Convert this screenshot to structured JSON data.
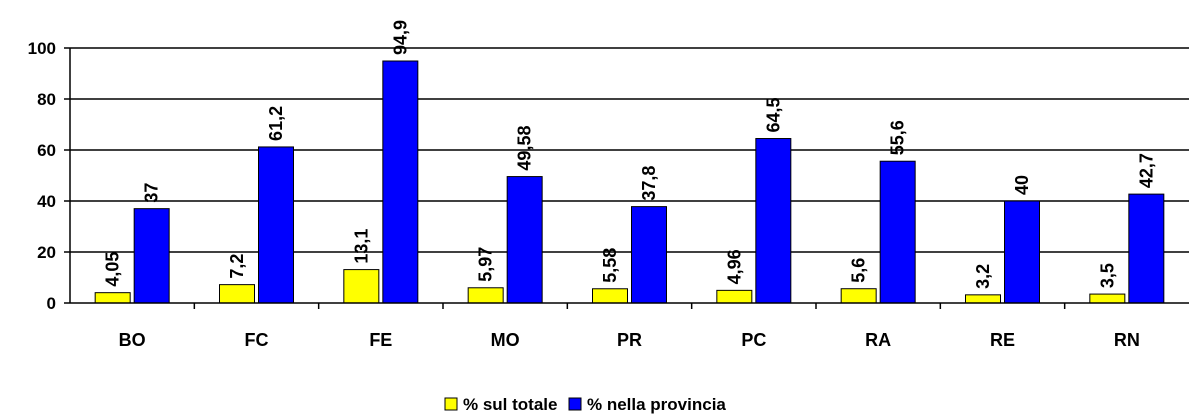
{
  "chart_data": {
    "type": "bar",
    "categories": [
      "BO",
      "FC",
      "FE",
      "MO",
      "PR",
      "PC",
      "RA",
      "RE",
      "RN"
    ],
    "series": [
      {
        "name": "% sul totale",
        "values": [
          4.05,
          7.2,
          13.1,
          5.97,
          5.58,
          4.96,
          5.6,
          3.2,
          3.5
        ],
        "labels": [
          "4,05",
          "7,2",
          "13,1",
          "5,97",
          "5,58",
          "4,96",
          "5,6",
          "3,2",
          "3,5"
        ],
        "color": "#FFFF00"
      },
      {
        "name": "% nella provincia",
        "values": [
          37,
          61.2,
          94.9,
          49.58,
          37.8,
          64.5,
          55.6,
          40,
          42.7
        ],
        "labels": [
          "37",
          "61,2",
          "94,9",
          "49,58",
          "37,8",
          "64,5",
          "55,6",
          "40",
          "42,7"
        ],
        "color": "#0000FF"
      }
    ],
    "ylim": [
      0,
      100
    ],
    "yticks": [
      0,
      20,
      40,
      60,
      80,
      100
    ],
    "grid": true,
    "legend_position": "bottom-center",
    "title": "",
    "xlabel": "",
    "ylabel": ""
  }
}
